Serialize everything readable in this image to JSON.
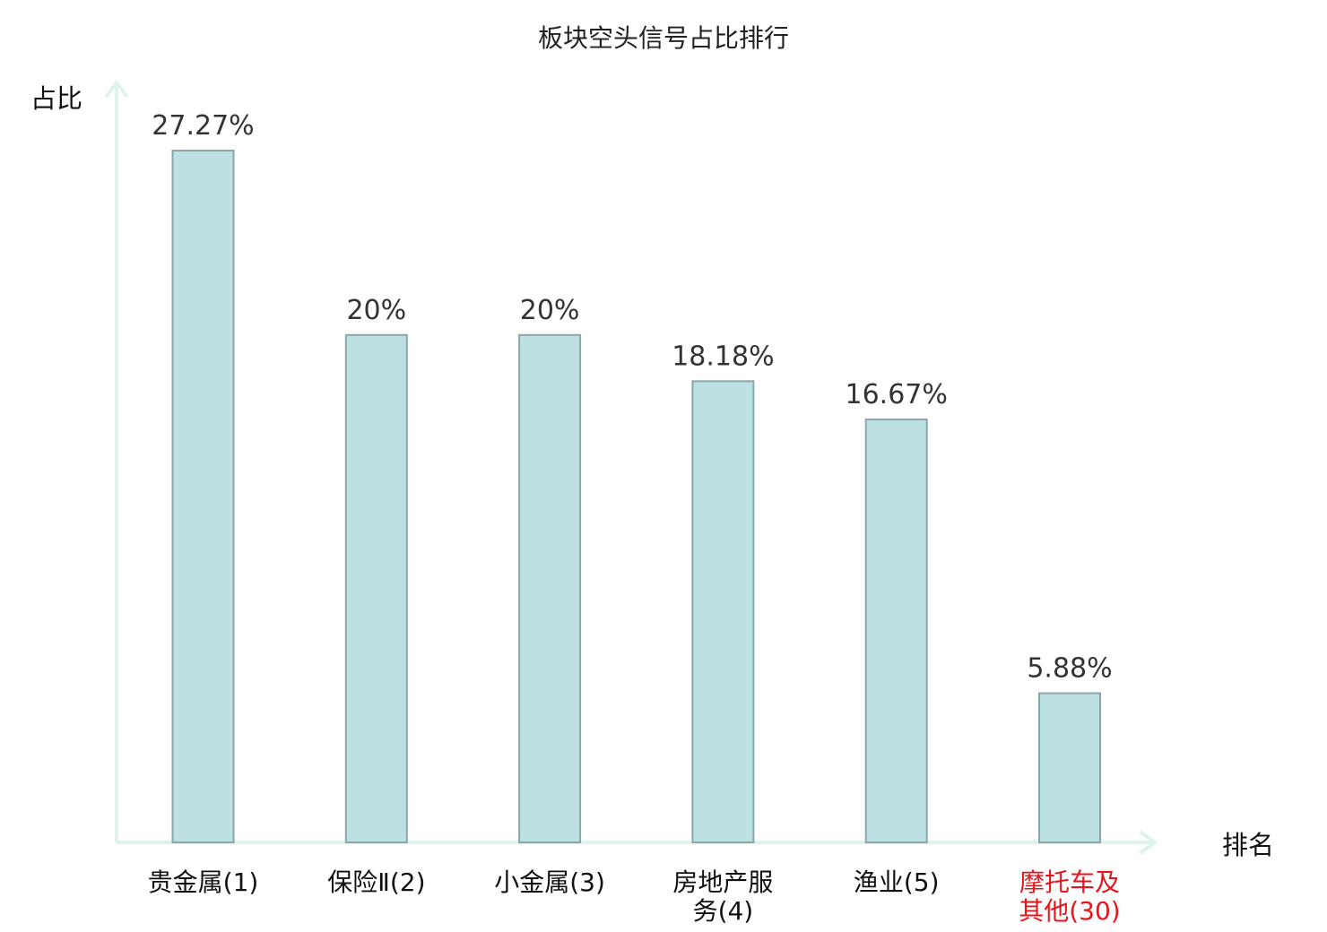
{
  "chart_data": {
    "type": "bar",
    "title": "板块空头信号占比排行",
    "ylabel": "占比",
    "xlabel": "排名",
    "ylim": [
      0,
      30
    ],
    "grid": false,
    "categories": [
      {
        "lines": [
          "贵金属(1)"
        ],
        "highlight": false
      },
      {
        "lines": [
          "保险Ⅱ(2)"
        ],
        "highlight": false
      },
      {
        "lines": [
          "小金属(3)"
        ],
        "highlight": false
      },
      {
        "lines": [
          "房地产服",
          "务(4)"
        ],
        "highlight": false
      },
      {
        "lines": [
          "渔业(5)"
        ],
        "highlight": false
      },
      {
        "lines": [
          "摩托车及",
          "其他(30)"
        ],
        "highlight": true
      }
    ],
    "values": [
      27.27,
      20,
      20,
      18.18,
      16.67,
      5.88
    ],
    "value_labels": [
      "27.27%",
      "20%",
      "20%",
      "18.18%",
      "16.67%",
      "5.88%"
    ]
  },
  "colors": {
    "bar_fill": "#bde0e2",
    "bar_stroke": "#8ba6a8",
    "axis": "#e0f2ef",
    "text": "#111111",
    "value_text": "#333333",
    "highlight_text": "#e8141c"
  }
}
